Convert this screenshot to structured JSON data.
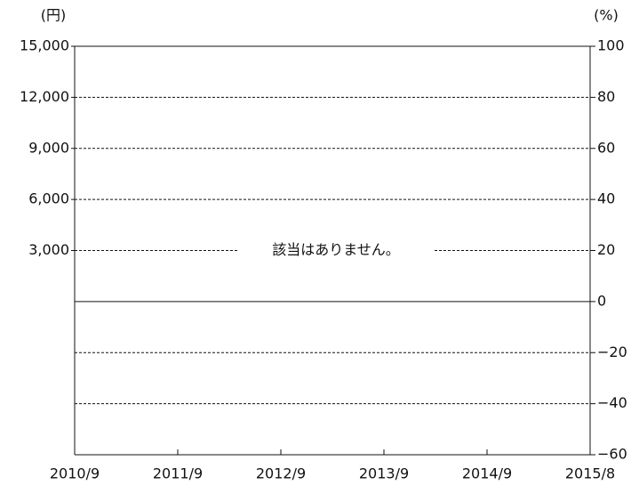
{
  "chart_data": {
    "type": "line",
    "ylabel": "(円)",
    "y2label": "(%)",
    "annotation": "該当はありません。",
    "categories": [
      "2010/9",
      "2011/9",
      "2012/9",
      "2013/9",
      "2014/9",
      "2015/8"
    ],
    "series": [],
    "ylim": [
      -9000,
      15000
    ],
    "yticks": [
      {
        "value": 3000,
        "label": "3,000"
      },
      {
        "value": 6000,
        "label": "6,000"
      },
      {
        "value": 9000,
        "label": "9,000"
      },
      {
        "value": 12000,
        "label": "12,000"
      },
      {
        "value": 15000,
        "label": "15,000"
      }
    ],
    "y2lim": [
      -60,
      100
    ],
    "y2ticks": [
      {
        "value": -60,
        "label": "−60"
      },
      {
        "value": -40,
        "label": "−40"
      },
      {
        "value": -20,
        "label": "−20"
      },
      0,
      20,
      40,
      60,
      80,
      100
    ],
    "grid": true
  }
}
